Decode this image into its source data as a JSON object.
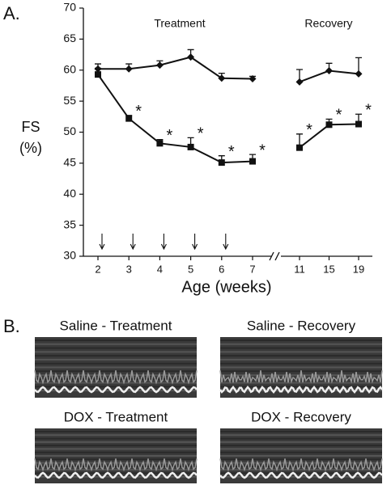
{
  "panel_labels": [
    "A.",
    "B."
  ],
  "chart_data": {
    "type": "line",
    "categories": [
      "2",
      "3",
      "4",
      "5",
      "6",
      "7",
      "11",
      "15",
      "19"
    ],
    "axis_break_after": 5,
    "xlabel": "Age (weeks)",
    "ylabel_lines": [
      "FS",
      "(%)"
    ],
    "ylim": [
      30,
      70
    ],
    "yticks": [
      30,
      35,
      40,
      45,
      50,
      55,
      60,
      65,
      70
    ],
    "annotations": [
      "Treatment",
      "Recovery"
    ],
    "significance_label": "*",
    "series": [
      {
        "marker": "diamond",
        "color": "#111111",
        "values": [
          60.2,
          60.2,
          60.8,
          62.1,
          58.7,
          58.6,
          58.1,
          59.9,
          59.4
        ],
        "errors": [
          0.8,
          0.8,
          0.7,
          1.2,
          0.8,
          0.4,
          2.0,
          1.2,
          2.6
        ]
      },
      {
        "marker": "square",
        "color": "#111111",
        "values": [
          59.3,
          52.2,
          48.2,
          47.6,
          45.1,
          45.3,
          47.5,
          51.2,
          51.3
        ],
        "errors": [
          1.0,
          0.5,
          0.6,
          1.5,
          1.1,
          1.1,
          2.2,
          0.9,
          1.6
        ],
        "significant": [
          false,
          true,
          true,
          true,
          true,
          true,
          true,
          true,
          true
        ]
      }
    ]
  },
  "images": [
    {
      "title": "Saline - Treatment"
    },
    {
      "title": "Saline - Recovery"
    },
    {
      "title": "DOX - Treatment"
    },
    {
      "title": "DOX - Recovery"
    }
  ]
}
